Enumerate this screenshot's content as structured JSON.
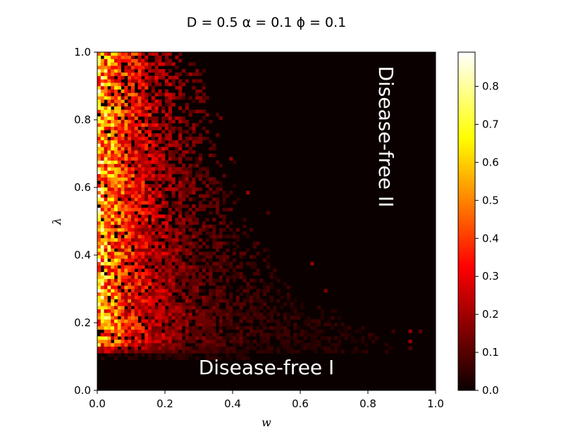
{
  "chart_data": {
    "type": "heatmap",
    "title": "D = 0.5 α = 0.1 ϕ = 0.1",
    "xlabel": "w",
    "ylabel": "λ",
    "xlim": [
      0.0,
      1.0
    ],
    "ylim": [
      0.0,
      1.0
    ],
    "x_ticks": [
      "0.0",
      "0.2",
      "0.4",
      "0.6",
      "0.8",
      "1.0"
    ],
    "y_ticks": [
      "0.0",
      "0.2",
      "0.4",
      "0.6",
      "0.8",
      "1.0"
    ],
    "grid": false,
    "colormap": "hot",
    "colorbar": {
      "range": [
        0.0,
        0.89
      ],
      "ticks": [
        "0.0",
        "0.1",
        "0.2",
        "0.3",
        "0.4",
        "0.5",
        "0.6",
        "0.7",
        "0.8"
      ]
    },
    "grid_size": [
      100,
      100
    ],
    "annotations": [
      {
        "text": "Disease-free I",
        "x": 0.5,
        "y": 0.065,
        "rotation": 0
      },
      {
        "text": "Disease-free II",
        "x": 0.85,
        "y": 0.75,
        "rotation": 90
      }
    ],
    "description_values": {
      "disease_free_I_threshold_lambda": 0.11,
      "disease_free_II_boundary": [
        {
          "lambda": 0.15,
          "w": 0.88
        },
        {
          "lambda": 0.3,
          "w": 0.58
        },
        {
          "lambda": 0.5,
          "w": 0.45
        },
        {
          "lambda": 0.7,
          "w": 0.37
        },
        {
          "lambda": 0.9,
          "w": 0.32
        },
        {
          "lambda": 1.0,
          "w": 0.29
        }
      ],
      "peak_region": {
        "w": [
          0.0,
          0.08
        ],
        "lambda": [
          0.4,
          1.0
        ],
        "typical_value": 0.55
      }
    }
  }
}
